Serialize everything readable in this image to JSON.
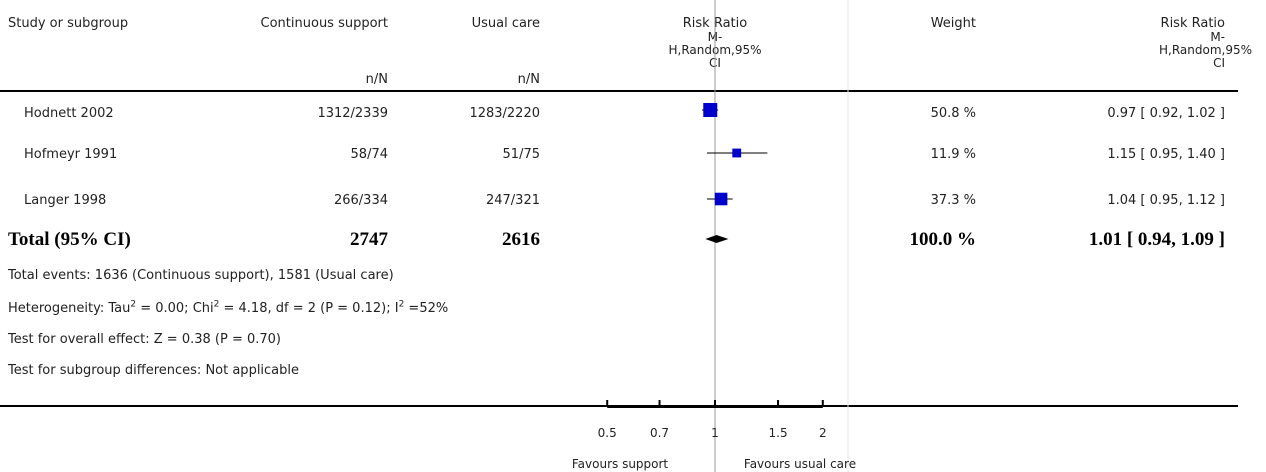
{
  "header": {
    "study": "Study or subgroup",
    "group1": "Continuous support",
    "group2": "Usual care",
    "nN1": "n/N",
    "nN2": "n/N",
    "rr_title": "Risk Ratio",
    "rr_line2": "M-",
    "rr_line3": "H,Random,95%",
    "rr_line4": "CI",
    "weight": "Weight",
    "rr2_title": "Risk Ratio",
    "rr2_line2": "M-",
    "rr2_line3": "H,Random,95%",
    "rr2_line4": "CI"
  },
  "studies": [
    {
      "name": "Hodnett 2002",
      "n1": "1312/2339",
      "n2": "1283/2220",
      "weight": "50.8 %",
      "ci": "0.97 [ 0.92, 1.02 ]"
    },
    {
      "name": "Hofmeyr 1991",
      "n1": "58/74",
      "n2": "51/75",
      "weight": "11.9 %",
      "ci": "1.15 [ 0.95, 1.40 ]"
    },
    {
      "name": "Langer 1998",
      "n1": "266/334",
      "n2": "247/321",
      "weight": "37.3 %",
      "ci": "1.04 [ 0.95, 1.12 ]"
    }
  ],
  "total": {
    "label": "Total (95% CI)",
    "n1": "2747",
    "n2": "2616",
    "weight": "100.0 %",
    "ci": "1.01 [ 0.94, 1.09 ]"
  },
  "notes": {
    "events": "Total events: 1636 (Continuous support), 1581 (Usual care)",
    "het_a": "Heterogeneity: Tau",
    "het_b": " = 0.00; Chi",
    "het_c": " = 4.18, df = 2 (P = 0.12); I",
    "het_d": " =52%",
    "sup2": "2",
    "overall": "Test for overall effect: Z = 0.38 (P = 0.70)",
    "subgroup": "Test for subgroup differences: Not applicable"
  },
  "axis": {
    "ticks": [
      "0.5",
      "0.7",
      "1",
      "1.5",
      "2"
    ],
    "favours_left": "Favours support",
    "favours_right": "Favours usual care"
  },
  "colors": {
    "marker": "#0000cc",
    "diamond": "#000000",
    "line": "#000000",
    "ref": "#999999"
  },
  "chart_data": {
    "type": "forest",
    "scale": "log",
    "xlim": [
      0.5,
      2
    ],
    "ticks": [
      0.5,
      0.7,
      1,
      1.5,
      2
    ],
    "xlabel_left": "Favours support",
    "xlabel_right": "Favours usual care",
    "series": [
      {
        "name": "Hodnett 2002",
        "rr": 0.97,
        "lo": 0.92,
        "hi": 1.02,
        "weight": 50.8
      },
      {
        "name": "Hofmeyr 1991",
        "rr": 1.15,
        "lo": 0.95,
        "hi": 1.4,
        "weight": 11.9
      },
      {
        "name": "Langer 1998",
        "rr": 1.04,
        "lo": 0.95,
        "hi": 1.12,
        "weight": 37.3
      }
    ],
    "total": {
      "rr": 1.01,
      "lo": 0.94,
      "hi": 1.09,
      "weight": 100.0
    }
  }
}
